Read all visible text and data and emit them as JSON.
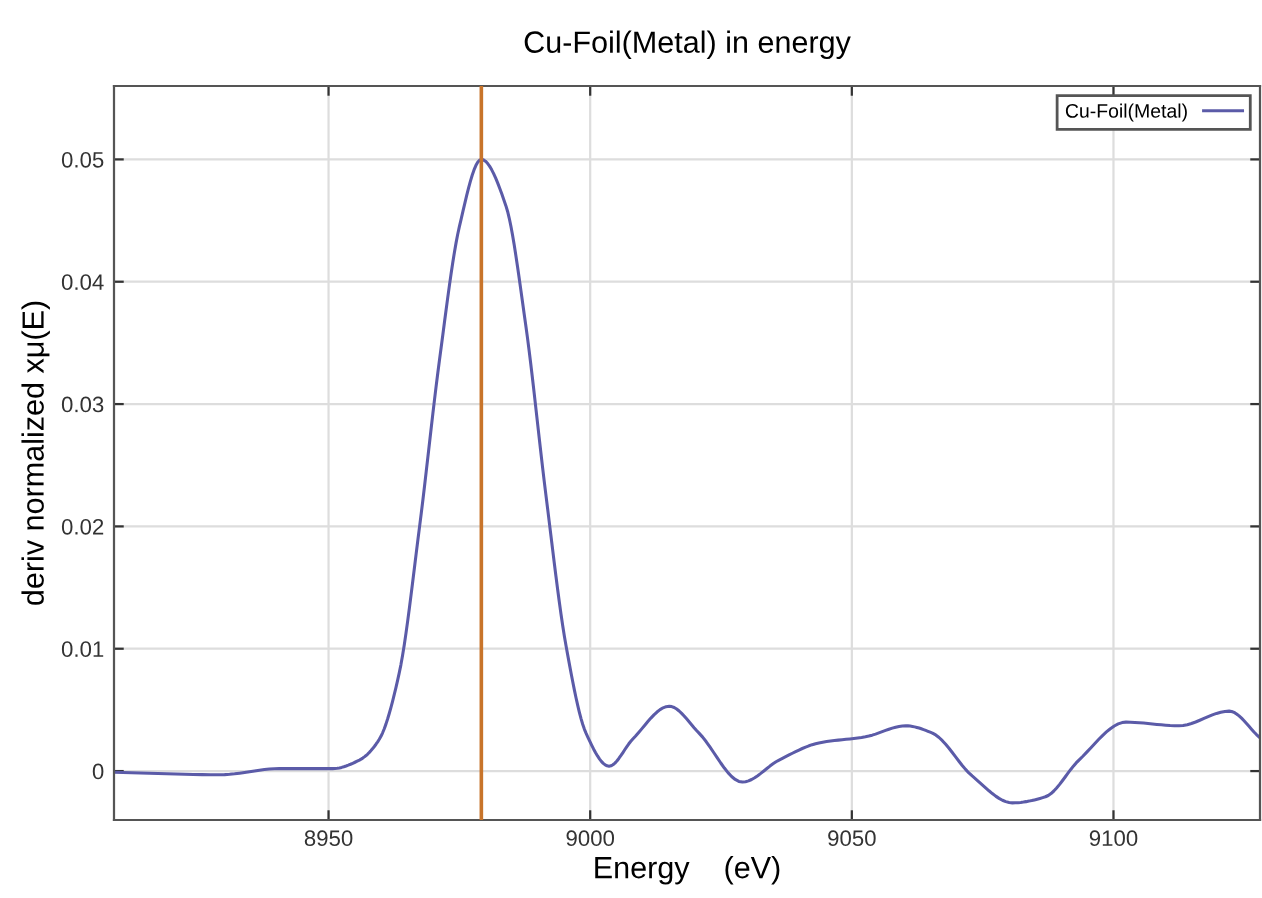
{
  "chart_data": {
    "type": "line",
    "title": "Cu-Foil(Metal) in energy",
    "xlabel": "Energy    (eV)",
    "ylabel": "deriv normalized xμ(E)",
    "series": [
      {
        "name": "Cu-Foil(Metal)",
        "color": "#5b5ba8",
        "x": [
          8909,
          8929.2,
          8940.6,
          8950.8,
          8955.9,
          8959.7,
          8963.5,
          8967.4,
          8971.2,
          8975,
          8979.2,
          8983.9,
          8987.7,
          8991.5,
          8995.4,
          8999.2,
          9003.6,
          9008.1,
          9015.1,
          9020.8,
          9029.1,
          9036.1,
          9043.7,
          9052.6,
          9060.3,
          9065.4,
          9073,
          9080.7,
          9087,
          9093.4,
          9102.4,
          9112.5,
          9122.1,
          9127.8
        ],
        "values": [
          -0.0001,
          -0.0003,
          0.0002,
          0.0002,
          0.0009,
          0.0026,
          0.008,
          0.02,
          0.0336,
          0.0445,
          0.05,
          0.0462,
          0.0364,
          0.0227,
          0.0102,
          0.0031,
          0.0004,
          0.0026,
          0.0053,
          0.0031,
          -0.0009,
          0.0009,
          0.0023,
          0.0028,
          0.0037,
          0.0031,
          -0.0004,
          -0.0026,
          -0.0021,
          0.0009,
          0.004,
          0.0037,
          0.0049,
          0.0028
        ]
      }
    ],
    "ref_lines": [
      {
        "axis": "x",
        "value": 8979.2,
        "color": "#c8742a"
      }
    ],
    "xlim": [
      8909,
      9128
    ],
    "ylim": [
      -0.004,
      0.056
    ],
    "xticks": [
      8950,
      9000,
      9050,
      9100
    ],
    "yticks": [
      0,
      0.01,
      0.02,
      0.03,
      0.04,
      0.05
    ],
    "grid": true,
    "legend": "top right"
  }
}
